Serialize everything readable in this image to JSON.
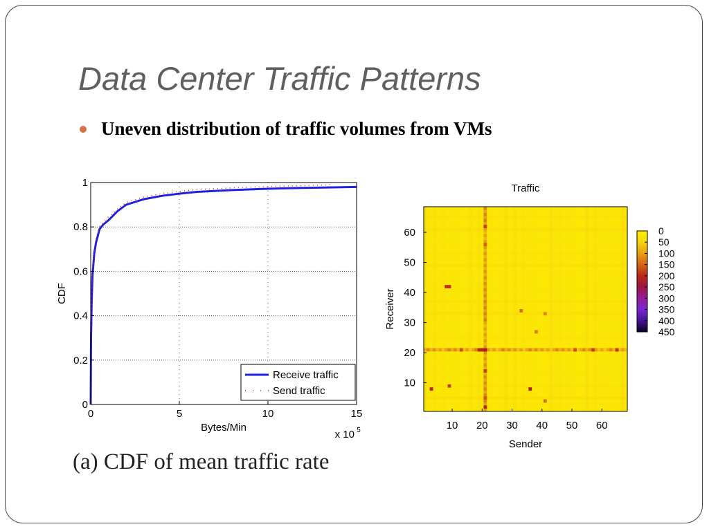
{
  "slide": {
    "title": "Data Center Traffic Patterns",
    "bullet": "Uneven distribution of traffic volumes from VMs",
    "caption": "(a)  CDF of mean traffic rate"
  },
  "colors": {
    "receive": "#1f1fe0",
    "send": "#e02020",
    "bullet": "#d4714a",
    "title": "#5f5f5f"
  },
  "chart_data": [
    {
      "type": "line",
      "xlabel": "Bytes/Min",
      "ylabel": "CDF",
      "x_multiplier_label": "x 10",
      "x_multiplier_exp": "5",
      "xlim": [
        0,
        15
      ],
      "ylim": [
        0,
        1
      ],
      "xticks": [
        0,
        5,
        10,
        15
      ],
      "yticks": [
        0,
        0.2,
        0.4,
        0.6,
        0.8,
        1
      ],
      "ytick_labels": [
        "0",
        "0.2",
        "0.4",
        "0.6",
        "0.8",
        "1"
      ],
      "grid": true,
      "legend_position": "bottom-right",
      "series": [
        {
          "name": "Receive traffic",
          "style": "solid",
          "x": [
            0,
            0.02,
            0.05,
            0.1,
            0.2,
            0.3,
            0.5,
            0.7,
            1,
            1.5,
            2,
            3,
            4,
            5,
            6,
            8,
            10,
            12,
            15
          ],
          "y": [
            0.0,
            0.3,
            0.45,
            0.58,
            0.68,
            0.73,
            0.79,
            0.81,
            0.83,
            0.87,
            0.9,
            0.925,
            0.94,
            0.95,
            0.958,
            0.966,
            0.972,
            0.976,
            0.98
          ]
        },
        {
          "name": "Send traffic",
          "style": "dotted",
          "x": [
            0,
            0.02,
            0.05,
            0.1,
            0.2,
            0.3,
            0.5,
            0.7,
            1,
            1.5,
            2,
            3,
            4,
            5,
            6,
            8,
            10,
            12,
            13.5
          ],
          "y": [
            0.0,
            0.31,
            0.47,
            0.6,
            0.7,
            0.75,
            0.8,
            0.82,
            0.845,
            0.88,
            0.91,
            0.935,
            0.95,
            0.96,
            0.968,
            0.976,
            0.982,
            0.986,
            0.99
          ]
        }
      ]
    },
    {
      "type": "heatmap",
      "title": "Traffic",
      "xlabel": "Sender",
      "ylabel": "Receiver",
      "xticks": [
        10,
        20,
        30,
        40,
        50,
        60
      ],
      "yticks": [
        10,
        20,
        30,
        40,
        50,
        60
      ],
      "grid_size": 68,
      "colorbar_ticks": [
        "0",
        "50",
        "100",
        "150",
        "200",
        "250",
        "300",
        "350",
        "400",
        "450"
      ],
      "colorbar_range": [
        0,
        450
      ],
      "hot_row": 21,
      "hot_column": 21,
      "hot_cells": [
        {
          "sender": 8,
          "receiver": 42,
          "value": 190
        },
        {
          "sender": 9,
          "receiver": 42,
          "value": 190
        },
        {
          "sender": 3,
          "receiver": 8,
          "value": 200
        },
        {
          "sender": 9,
          "receiver": 9,
          "value": 180
        },
        {
          "sender": 36,
          "receiver": 8,
          "value": 220
        },
        {
          "sender": 33,
          "receiver": 34,
          "value": 140
        },
        {
          "sender": 41,
          "receiver": 33,
          "value": 120
        },
        {
          "sender": 38,
          "receiver": 27,
          "value": 130
        },
        {
          "sender": 41,
          "receiver": 4,
          "value": 140
        },
        {
          "sender": 13,
          "receiver": 21,
          "value": 170
        },
        {
          "sender": 19,
          "receiver": 21,
          "value": 200
        },
        {
          "sender": 20,
          "receiver": 21,
          "value": 210
        },
        {
          "sender": 21,
          "receiver": 21,
          "value": 230
        },
        {
          "sender": 21,
          "receiver": 62,
          "value": 180
        },
        {
          "sender": 21,
          "receiver": 56,
          "value": 150
        },
        {
          "sender": 21,
          "receiver": 14,
          "value": 180
        },
        {
          "sender": 21,
          "receiver": 5,
          "value": 160
        },
        {
          "sender": 21,
          "receiver": 2,
          "value": 200
        },
        {
          "sender": 51,
          "receiver": 21,
          "value": 170
        },
        {
          "sender": 57,
          "receiver": 21,
          "value": 180
        },
        {
          "sender": 65,
          "receiver": 21,
          "value": 190
        }
      ]
    }
  ]
}
